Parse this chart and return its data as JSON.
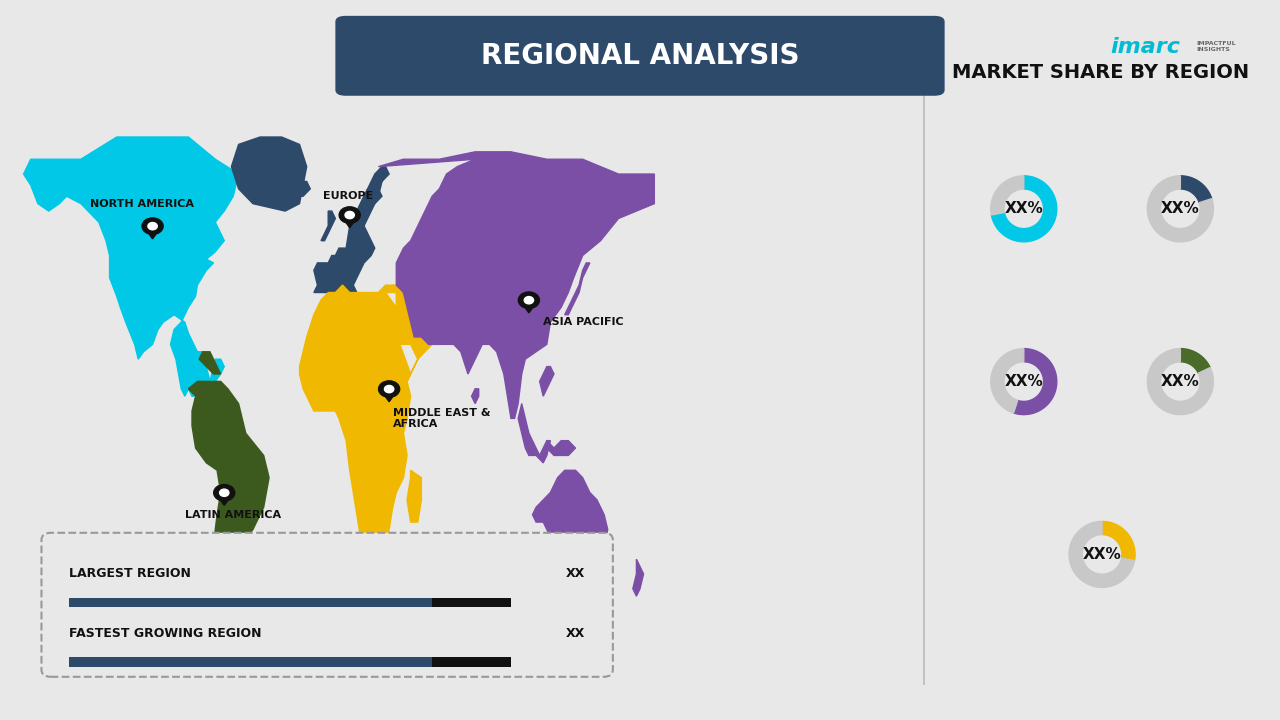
{
  "title": "REGIONAL ANALYSIS",
  "title_bg_color": "#2e4a6b",
  "title_text_color": "#ffffff",
  "bg_color": "#e8e8e8",
  "divider_color": "#bbbbbb",
  "donut_gray": "#c8c8c8",
  "donut_label": "XX%",
  "donut_label_fontsize": 11,
  "market_share_title": "MARKET SHARE BY REGION",
  "market_share_title_fontsize": 14,
  "legend_bar_color": "#2e4a6b",
  "legend_bar_end_color": "#111111",
  "legend_items": [
    {
      "label": "LARGEST REGION",
      "value": "XX"
    },
    {
      "label": "FASTEST GROWING REGION",
      "value": "XX"
    }
  ],
  "imarc_color": "#00bcd4",
  "colors": {
    "north_america": "#00c8e6",
    "europe": "#2e4a6b",
    "asia_pacific": "#7b4fa6",
    "middle_east_africa": "#f0b800",
    "latin_america": "#3d5a1e"
  },
  "donuts": [
    {
      "color": "#00c8e6",
      "pct": 0.72,
      "row": 0,
      "col": 0
    },
    {
      "color": "#2e4a6b",
      "pct": 0.2,
      "row": 0,
      "col": 1
    },
    {
      "color": "#7b4fa6",
      "pct": 0.55,
      "row": 1,
      "col": 0
    },
    {
      "color": "#4a6b2a",
      "pct": 0.18,
      "row": 1,
      "col": 1
    },
    {
      "color": "#f0b800",
      "pct": 0.28,
      "row": 2,
      "col": 0
    }
  ]
}
